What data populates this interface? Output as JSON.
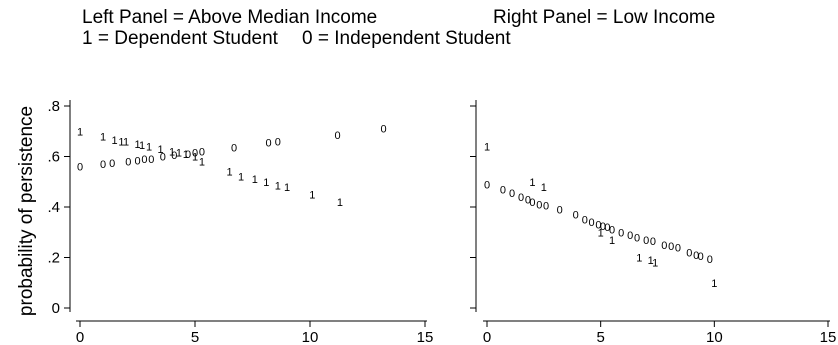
{
  "header": {
    "line1_left": "Left Panel = Above Median Income",
    "line1_right": "Right Panel = Low Income",
    "line2_left": "1 = Dependent Student",
    "line2_right": "0 = Independent Student"
  },
  "chart_data": {
    "type": "scatter",
    "ylabel": "probability of persistence",
    "ylim": [
      0,
      0.8
    ],
    "xlim": [
      0,
      15
    ],
    "y_ticks": [
      0,
      0.2,
      0.4,
      0.6,
      0.8
    ],
    "y_tick_labels": [
      "0",
      ".2",
      ".4",
      ".6",
      ".8"
    ],
    "x_ticks": [
      0,
      5,
      10,
      15
    ],
    "x_tick_labels": [
      "0",
      "5",
      "10",
      "15"
    ],
    "grid": false,
    "panels": [
      {
        "series": [
          {
            "marker": "1",
            "points": [
              [
                0,
                0.7
              ],
              [
                1,
                0.68
              ],
              [
                1.5,
                0.665
              ],
              [
                1.8,
                0.66
              ],
              [
                2,
                0.66
              ],
              [
                2.5,
                0.65
              ],
              [
                2.7,
                0.645
              ],
              [
                3,
                0.64
              ],
              [
                3.5,
                0.63
              ],
              [
                4,
                0.62
              ],
              [
                4.3,
                0.615
              ],
              [
                4.6,
                0.61
              ],
              [
                5,
                0.6
              ],
              [
                5.3,
                0.58
              ],
              [
                6.5,
                0.54
              ],
              [
                7,
                0.52
              ],
              [
                7.6,
                0.51
              ],
              [
                8.1,
                0.5
              ],
              [
                8.6,
                0.485
              ],
              [
                9,
                0.48
              ],
              [
                10.1,
                0.45
              ],
              [
                11.3,
                0.42
              ]
            ]
          },
          {
            "marker": "0",
            "points": [
              [
                0,
                0.56
              ],
              [
                1,
                0.57
              ],
              [
                1.4,
                0.575
              ],
              [
                2.1,
                0.58
              ],
              [
                2.5,
                0.585
              ],
              [
                2.8,
                0.59
              ],
              [
                3.1,
                0.59
              ],
              [
                3.6,
                0.6
              ],
              [
                4.1,
                0.605
              ],
              [
                4.7,
                0.61
              ],
              [
                5,
                0.615
              ],
              [
                5.3,
                0.62
              ],
              [
                6.7,
                0.635
              ],
              [
                8.2,
                0.655
              ],
              [
                8.6,
                0.66
              ],
              [
                11.2,
                0.685
              ],
              [
                13.2,
                0.71
              ]
            ]
          }
        ]
      },
      {
        "series": [
          {
            "marker": "1",
            "points": [
              [
                0,
                0.64
              ],
              [
                2,
                0.5
              ],
              [
                2.5,
                0.48
              ],
              [
                5,
                0.3
              ],
              [
                5.5,
                0.27
              ],
              [
                6.7,
                0.2
              ],
              [
                7.2,
                0.19
              ],
              [
                7.4,
                0.18
              ],
              [
                10,
                0.1
              ]
            ]
          },
          {
            "marker": "0",
            "points": [
              [
                0,
                0.49
              ],
              [
                0.7,
                0.47
              ],
              [
                1.1,
                0.455
              ],
              [
                1.5,
                0.44
              ],
              [
                1.8,
                0.43
              ],
              [
                2,
                0.42
              ],
              [
                2.3,
                0.41
              ],
              [
                2.6,
                0.405
              ],
              [
                3.2,
                0.39
              ],
              [
                3.9,
                0.37
              ],
              [
                4.3,
                0.35
              ],
              [
                4.6,
                0.34
              ],
              [
                4.9,
                0.33
              ],
              [
                5.1,
                0.325
              ],
              [
                5.3,
                0.32
              ],
              [
                5.5,
                0.31
              ],
              [
                5.9,
                0.3
              ],
              [
                6.3,
                0.29
              ],
              [
                6.6,
                0.28
              ],
              [
                7,
                0.27
              ],
              [
                7.3,
                0.265
              ],
              [
                7.8,
                0.25
              ],
              [
                8.1,
                0.245
              ],
              [
                8.4,
                0.24
              ],
              [
                8.9,
                0.22
              ],
              [
                9.2,
                0.21
              ],
              [
                9.4,
                0.205
              ],
              [
                9.8,
                0.195
              ]
            ]
          }
        ]
      }
    ]
  }
}
